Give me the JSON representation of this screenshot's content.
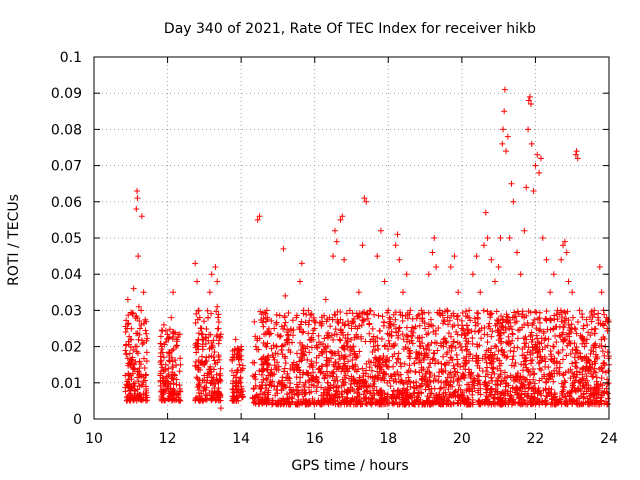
{
  "chart_data": {
    "type": "scatter",
    "title": "Day 340 of 2021, Rate Of TEC Index for receiver hikb",
    "xlabel": "GPS time / hours",
    "ylabel": "ROTI / TECUs",
    "xlim": [
      10,
      24
    ],
    "ylim": [
      0,
      0.1
    ],
    "x_ticks": [
      "10",
      "12",
      "14",
      "16",
      "18",
      "20",
      "22",
      "24"
    ],
    "y_ticks": [
      "0",
      "0.01",
      "0.02",
      "0.03",
      "0.04",
      "0.05",
      "0.06",
      "0.07",
      "0.08",
      "0.09",
      "0.1"
    ],
    "grid": true,
    "marker": "+",
    "color": "#ff0000",
    "series": [
      {
        "values": [
          [
            10.85,
            0.012
          ],
          [
            10.88,
            0.018
          ],
          [
            10.9,
            0.025
          ],
          [
            10.92,
            0.033
          ],
          [
            10.95,
            0.009
          ],
          [
            10.98,
            0.015
          ],
          [
            11.0,
            0.022
          ],
          [
            11.02,
            0.011
          ],
          [
            11.05,
            0.029
          ],
          [
            11.08,
            0.036
          ],
          [
            11.1,
            0.014
          ],
          [
            11.12,
            0.02
          ],
          [
            11.15,
            0.058
          ],
          [
            11.17,
            0.063
          ],
          [
            11.18,
            0.061
          ],
          [
            11.2,
            0.045
          ],
          [
            11.22,
            0.031
          ],
          [
            11.25,
            0.025
          ],
          [
            11.3,
            0.056
          ],
          [
            11.35,
            0.035
          ],
          [
            11.4,
            0.012
          ],
          [
            10.9,
            0.006
          ],
          [
            11.0,
            0.007
          ],
          [
            11.1,
            0.008
          ],
          [
            11.05,
            0.017
          ],
          [
            11.8,
            0.012
          ],
          [
            11.85,
            0.02
          ],
          [
            11.9,
            0.026
          ],
          [
            11.95,
            0.015
          ],
          [
            12.0,
            0.009
          ],
          [
            12.05,
            0.018
          ],
          [
            12.1,
            0.028
          ],
          [
            12.15,
            0.035
          ],
          [
            12.2,
            0.012
          ],
          [
            12.25,
            0.022
          ],
          [
            12.3,
            0.006
          ],
          [
            12.35,
            0.015
          ],
          [
            11.85,
            0.008
          ],
          [
            12.2,
            0.007
          ],
          [
            12.75,
            0.043
          ],
          [
            12.8,
            0.038
          ],
          [
            12.85,
            0.03
          ],
          [
            12.9,
            0.025
          ],
          [
            12.95,
            0.02
          ],
          [
            13.0,
            0.015
          ],
          [
            13.05,
            0.01
          ],
          [
            13.1,
            0.028
          ],
          [
            13.15,
            0.035
          ],
          [
            13.2,
            0.04
          ],
          [
            13.3,
            0.042
          ],
          [
            13.35,
            0.038
          ],
          [
            13.4,
            0.005
          ],
          [
            13.45,
            0.003
          ],
          [
            12.85,
            0.008
          ],
          [
            13.0,
            0.012
          ],
          [
            13.35,
            0.031
          ],
          [
            13.8,
            0.012
          ],
          [
            13.85,
            0.022
          ],
          [
            13.9,
            0.018
          ],
          [
            13.95,
            0.015
          ],
          [
            14.0,
            0.009
          ],
          [
            14.05,
            0.014
          ],
          [
            13.9,
            0.006
          ],
          [
            14.0,
            0.02
          ],
          [
            14.4,
            0.02
          ],
          [
            14.45,
            0.055
          ],
          [
            14.5,
            0.056
          ],
          [
            14.6,
            0.015
          ],
          [
            14.7,
            0.03
          ],
          [
            14.8,
            0.012
          ],
          [
            14.9,
            0.025
          ],
          [
            15.0,
            0.018
          ],
          [
            15.1,
            0.01
          ],
          [
            15.15,
            0.047
          ],
          [
            15.2,
            0.034
          ],
          [
            15.3,
            0.022
          ],
          [
            15.4,
            0.015
          ],
          [
            15.5,
            0.028
          ],
          [
            15.6,
            0.038
          ],
          [
            15.65,
            0.043
          ],
          [
            15.7,
            0.03
          ],
          [
            15.8,
            0.02
          ],
          [
            15.9,
            0.012
          ],
          [
            16.0,
            0.025
          ],
          [
            16.1,
            0.01
          ],
          [
            16.2,
            0.018
          ],
          [
            16.3,
            0.033
          ],
          [
            16.4,
            0.028
          ],
          [
            16.5,
            0.045
          ],
          [
            16.55,
            0.052
          ],
          [
            16.6,
            0.049
          ],
          [
            16.7,
            0.055
          ],
          [
            16.75,
            0.056
          ],
          [
            16.8,
            0.044
          ],
          [
            16.9,
            0.02
          ],
          [
            17.0,
            0.025
          ],
          [
            17.1,
            0.015
          ],
          [
            17.2,
            0.035
          ],
          [
            17.3,
            0.048
          ],
          [
            17.35,
            0.061
          ],
          [
            17.4,
            0.06
          ],
          [
            17.5,
            0.03
          ],
          [
            17.6,
            0.02
          ],
          [
            17.7,
            0.045
          ],
          [
            17.8,
            0.052
          ],
          [
            17.9,
            0.038
          ],
          [
            18.0,
            0.03
          ],
          [
            18.1,
            0.02
          ],
          [
            18.2,
            0.048
          ],
          [
            18.25,
            0.051
          ],
          [
            18.3,
            0.044
          ],
          [
            18.4,
            0.035
          ],
          [
            18.5,
            0.04
          ],
          [
            18.6,
            0.03
          ],
          [
            18.7,
            0.025
          ],
          [
            18.8,
            0.018
          ],
          [
            18.9,
            0.03
          ],
          [
            19.0,
            0.025
          ],
          [
            19.1,
            0.04
          ],
          [
            19.2,
            0.046
          ],
          [
            19.25,
            0.05
          ],
          [
            19.3,
            0.042
          ],
          [
            19.4,
            0.03
          ],
          [
            19.5,
            0.02
          ],
          [
            19.6,
            0.03
          ],
          [
            19.7,
            0.042
          ],
          [
            19.8,
            0.045
          ],
          [
            19.9,
            0.035
          ],
          [
            20.0,
            0.025
          ],
          [
            20.1,
            0.02
          ],
          [
            20.2,
            0.03
          ],
          [
            20.3,
            0.04
          ],
          [
            20.4,
            0.045
          ],
          [
            20.5,
            0.035
          ],
          [
            20.6,
            0.048
          ],
          [
            20.65,
            0.057
          ],
          [
            20.7,
            0.05
          ],
          [
            20.8,
            0.044
          ],
          [
            20.9,
            0.038
          ],
          [
            21.0,
            0.042
          ],
          [
            21.05,
            0.05
          ],
          [
            21.1,
            0.076
          ],
          [
            21.12,
            0.08
          ],
          [
            21.15,
            0.085
          ],
          [
            21.17,
            0.091
          ],
          [
            21.2,
            0.074
          ],
          [
            21.25,
            0.078
          ],
          [
            21.3,
            0.05
          ],
          [
            21.35,
            0.065
          ],
          [
            21.4,
            0.06
          ],
          [
            21.5,
            0.046
          ],
          [
            21.6,
            0.04
          ],
          [
            21.7,
            0.052
          ],
          [
            21.75,
            0.064
          ],
          [
            21.8,
            0.08
          ],
          [
            21.82,
            0.088
          ],
          [
            21.85,
            0.089
          ],
          [
            21.88,
            0.087
          ],
          [
            21.9,
            0.076
          ],
          [
            21.95,
            0.063
          ],
          [
            22.0,
            0.07
          ],
          [
            22.05,
            0.073
          ],
          [
            22.1,
            0.068
          ],
          [
            22.15,
            0.072
          ],
          [
            22.2,
            0.05
          ],
          [
            22.3,
            0.044
          ],
          [
            22.4,
            0.035
          ],
          [
            22.5,
            0.04
          ],
          [
            22.6,
            0.03
          ],
          [
            22.7,
            0.044
          ],
          [
            22.75,
            0.048
          ],
          [
            22.8,
            0.049
          ],
          [
            22.85,
            0.046
          ],
          [
            22.9,
            0.038
          ],
          [
            23.0,
            0.035
          ],
          [
            23.1,
            0.073
          ],
          [
            23.12,
            0.074
          ],
          [
            23.15,
            0.072
          ],
          [
            23.2,
            0.03
          ],
          [
            23.3,
            0.025
          ],
          [
            23.4,
            0.022
          ],
          [
            23.5,
            0.018
          ],
          [
            23.6,
            0.03
          ],
          [
            23.7,
            0.028
          ],
          [
            23.75,
            0.042
          ],
          [
            23.8,
            0.035
          ],
          [
            23.85,
            0.03
          ],
          [
            23.9,
            0.02
          ],
          [
            23.95,
            0.025
          ],
          [
            24.0,
            0.015
          ]
        ]
      }
    ],
    "dense_bands": [
      {
        "x_from": 10.85,
        "x_to": 11.45,
        "y_low": 0.005,
        "y_high": 0.03
      },
      {
        "x_from": 11.8,
        "x_to": 12.35,
        "y_low": 0.005,
        "y_high": 0.025
      },
      {
        "x_from": 12.75,
        "x_to": 13.45,
        "y_low": 0.005,
        "y_high": 0.03
      },
      {
        "x_from": 13.75,
        "x_to": 14.05,
        "y_low": 0.005,
        "y_high": 0.02
      },
      {
        "x_from": 14.3,
        "x_to": 24.0,
        "y_low": 0.004,
        "y_high": 0.03
      }
    ]
  }
}
